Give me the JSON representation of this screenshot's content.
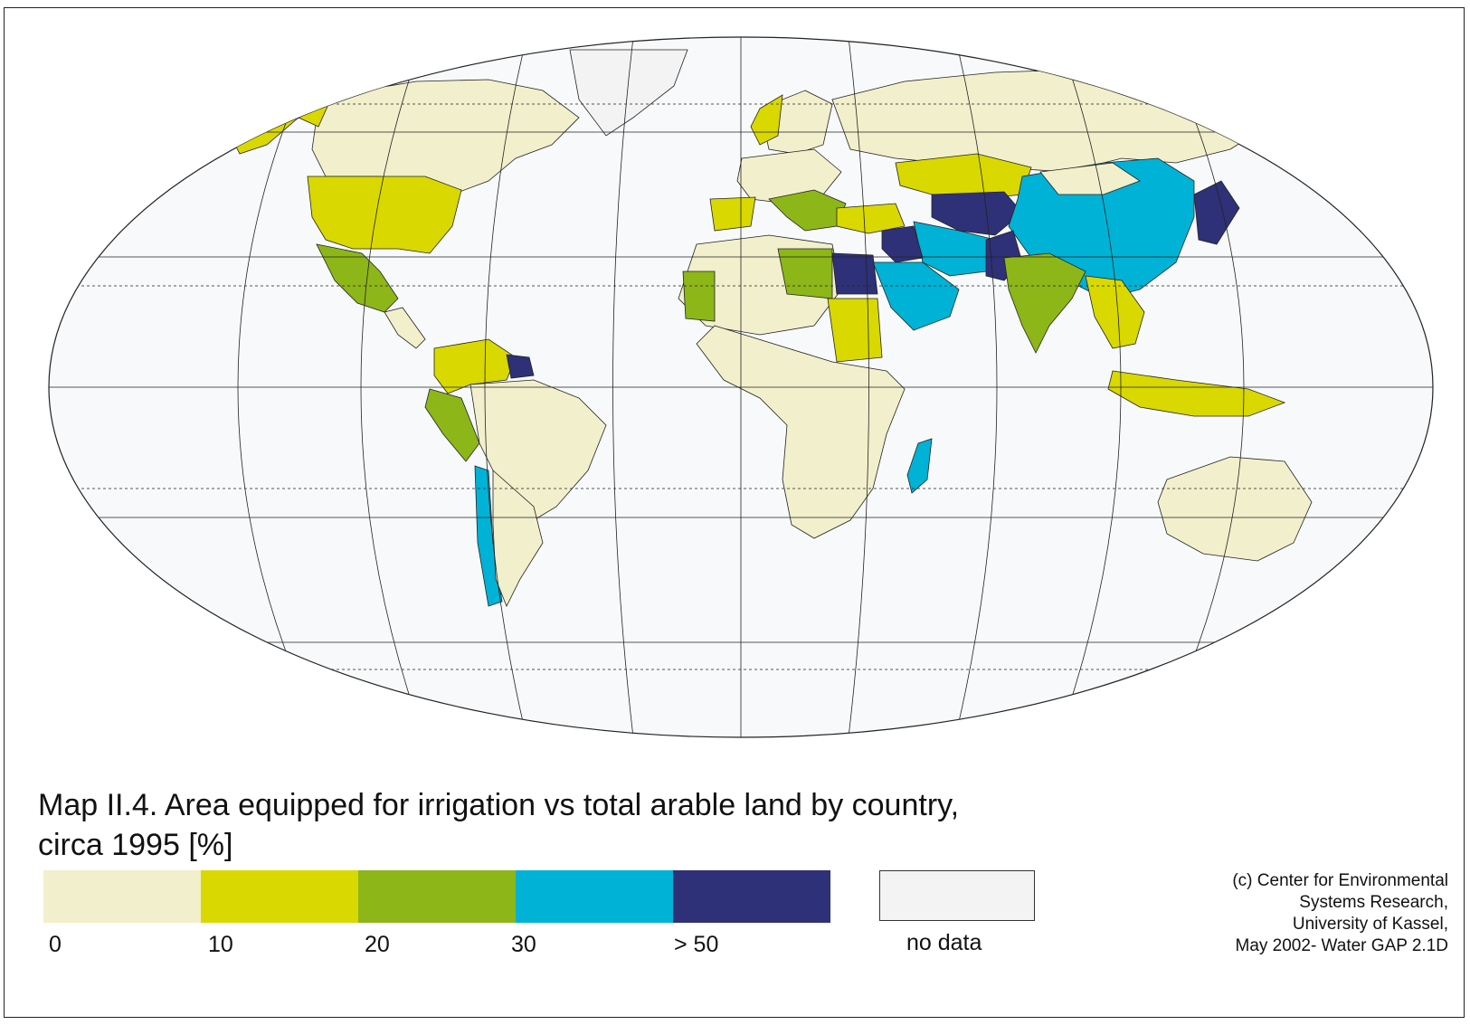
{
  "title_line1": "Map II.4. Area equipped for irrigation vs total arable land by country,",
  "title_line2": "circa 1995 [%]",
  "legend": {
    "classes": [
      {
        "color": "#f2efcc"
      },
      {
        "color": "#d9d800"
      },
      {
        "color": "#8db619"
      },
      {
        "color": "#00b2d5"
      },
      {
        "color": "#2e3178"
      }
    ],
    "ticks": [
      "0",
      "10",
      "20",
      "30",
      "> 50"
    ],
    "no_data_color": "#f3f3f3",
    "no_data_label": "no data"
  },
  "credit": [
    "(c) Center for Environmental",
    "Systems Research,",
    "University of Kassel,",
    "May 2002- Water GAP 2.1D"
  ],
  "colors": {
    "ocean": "#f7f9fb",
    "graticule": "#222222",
    "country_border": "#222222"
  }
}
